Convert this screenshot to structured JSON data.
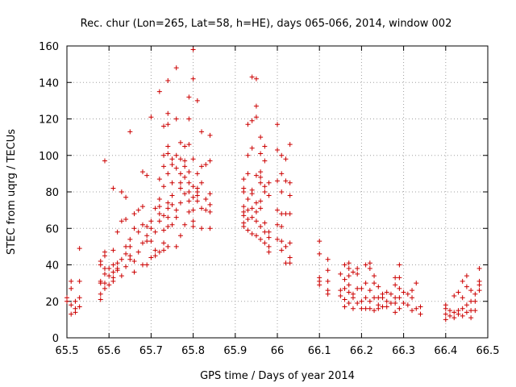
{
  "chart_data": {
    "type": "scatter",
    "title": "Rec. chur (Lon=265, Lat=58, h=HE), days 065-066, 2014, window 002",
    "xlabel": "GPS time / Days of year 2014",
    "ylabel": "STEC from uqrg / TECUs",
    "xlim": [
      65.5,
      66.5
    ],
    "ylim": [
      0,
      160
    ],
    "xticks": [
      65.5,
      65.6,
      65.7,
      65.8,
      65.9,
      66.0,
      66.1,
      66.2,
      66.3,
      66.4,
      66.5
    ],
    "xtick_labels": [
      "65.5",
      "65.6",
      "65.7",
      "65.8",
      "65.9",
      "66",
      "66.1",
      "66.2",
      "66.3",
      "66.4",
      "66.5"
    ],
    "yticks": [
      0,
      20,
      40,
      60,
      80,
      100,
      120,
      140,
      160
    ],
    "ytick_labels": [
      "0",
      "20",
      "40",
      "60",
      "80",
      "100",
      "120",
      "140",
      "160"
    ],
    "grid": true,
    "marker": "plus",
    "color": "#cc0000",
    "points": [
      [
        65.5,
        22
      ],
      [
        65.5,
        20
      ],
      [
        65.51,
        18
      ],
      [
        65.51,
        13
      ],
      [
        65.51,
        27
      ],
      [
        65.51,
        31
      ],
      [
        65.52,
        16
      ],
      [
        65.52,
        14
      ],
      [
        65.52,
        20
      ],
      [
        65.53,
        31
      ],
      [
        65.53,
        22
      ],
      [
        65.53,
        17
      ],
      [
        65.53,
        49
      ],
      [
        65.58,
        42
      ],
      [
        65.58,
        40
      ],
      [
        65.58,
        31
      ],
      [
        65.58,
        30
      ],
      [
        65.58,
        24
      ],
      [
        65.58,
        21
      ],
      [
        65.59,
        97
      ],
      [
        65.59,
        47
      ],
      [
        65.59,
        45
      ],
      [
        65.59,
        38
      ],
      [
        65.59,
        35
      ],
      [
        65.59,
        30
      ],
      [
        65.59,
        27
      ],
      [
        65.6,
        38
      ],
      [
        65.6,
        34
      ],
      [
        65.6,
        29
      ],
      [
        65.61,
        82
      ],
      [
        65.61,
        48
      ],
      [
        65.61,
        40
      ],
      [
        65.61,
        36
      ],
      [
        65.61,
        33
      ],
      [
        65.61,
        31
      ],
      [
        65.62,
        58
      ],
      [
        65.62,
        41
      ],
      [
        65.62,
        38
      ],
      [
        65.62,
        37
      ],
      [
        65.63,
        80
      ],
      [
        65.63,
        64
      ],
      [
        65.63,
        43
      ],
      [
        65.63,
        34
      ],
      [
        65.64,
        77
      ],
      [
        65.64,
        65
      ],
      [
        65.64,
        50
      ],
      [
        65.64,
        46
      ],
      [
        65.64,
        39
      ],
      [
        65.65,
        113
      ],
      [
        65.65,
        54
      ],
      [
        65.65,
        50
      ],
      [
        65.65,
        45
      ],
      [
        65.65,
        43
      ],
      [
        65.66,
        68
      ],
      [
        65.66,
        60
      ],
      [
        65.66,
        42
      ],
      [
        65.66,
        36
      ],
      [
        65.67,
        70
      ],
      [
        65.67,
        58
      ],
      [
        65.67,
        47
      ],
      [
        65.68,
        91
      ],
      [
        65.68,
        72
      ],
      [
        65.68,
        62
      ],
      [
        65.68,
        52
      ],
      [
        65.68,
        40
      ],
      [
        65.69,
        89
      ],
      [
        65.69,
        61
      ],
      [
        65.69,
        56
      ],
      [
        65.69,
        53
      ],
      [
        65.69,
        40
      ],
      [
        65.7,
        121
      ],
      [
        65.7,
        64
      ],
      [
        65.7,
        60
      ],
      [
        65.7,
        53
      ],
      [
        65.7,
        44
      ],
      [
        65.71,
        71
      ],
      [
        65.71,
        58
      ],
      [
        65.71,
        48
      ],
      [
        65.71,
        45
      ],
      [
        65.72,
        135
      ],
      [
        65.72,
        87
      ],
      [
        65.72,
        76
      ],
      [
        65.72,
        72
      ],
      [
        65.72,
        68
      ],
      [
        65.72,
        64
      ],
      [
        65.72,
        47
      ],
      [
        65.73,
        116
      ],
      [
        65.73,
        100
      ],
      [
        65.73,
        94
      ],
      [
        65.73,
        83
      ],
      [
        65.73,
        67
      ],
      [
        65.73,
        59
      ],
      [
        65.73,
        52
      ],
      [
        65.73,
        48
      ],
      [
        65.74,
        141
      ],
      [
        65.74,
        123
      ],
      [
        65.74,
        117
      ],
      [
        65.74,
        105
      ],
      [
        65.74,
        101
      ],
      [
        65.74,
        90
      ],
      [
        65.74,
        74
      ],
      [
        65.74,
        71
      ],
      [
        65.74,
        66
      ],
      [
        65.74,
        61
      ],
      [
        65.74,
        50
      ],
      [
        65.75,
        98
      ],
      [
        65.75,
        95
      ],
      [
        65.75,
        85
      ],
      [
        65.75,
        78
      ],
      [
        65.75,
        73
      ],
      [
        65.75,
        62
      ],
      [
        65.76,
        148
      ],
      [
        65.76,
        120
      ],
      [
        65.76,
        100
      ],
      [
        65.76,
        93
      ],
      [
        65.76,
        70
      ],
      [
        65.76,
        66
      ],
      [
        65.76,
        50
      ],
      [
        65.77,
        107
      ],
      [
        65.77,
        98
      ],
      [
        65.77,
        90
      ],
      [
        65.77,
        85
      ],
      [
        65.77,
        82
      ],
      [
        65.77,
        74
      ],
      [
        65.77,
        56
      ],
      [
        65.78,
        105
      ],
      [
        65.78,
        97
      ],
      [
        65.78,
        94
      ],
      [
        65.78,
        88
      ],
      [
        65.78,
        79
      ],
      [
        65.78,
        62
      ],
      [
        65.79,
        132
      ],
      [
        65.79,
        120
      ],
      [
        65.79,
        106
      ],
      [
        65.79,
        91
      ],
      [
        65.79,
        85
      ],
      [
        65.79,
        80
      ],
      [
        65.79,
        75
      ],
      [
        65.79,
        69
      ],
      [
        65.8,
        158
      ],
      [
        65.8,
        142
      ],
      [
        65.8,
        98
      ],
      [
        65.8,
        83
      ],
      [
        65.8,
        77
      ],
      [
        65.8,
        70
      ],
      [
        65.8,
        64
      ],
      [
        65.8,
        61
      ],
      [
        65.81,
        130
      ],
      [
        65.81,
        90
      ],
      [
        65.81,
        82
      ],
      [
        65.81,
        80
      ],
      [
        65.81,
        78
      ],
      [
        65.81,
        75
      ],
      [
        65.82,
        113
      ],
      [
        65.82,
        94
      ],
      [
        65.82,
        85
      ],
      [
        65.82,
        71
      ],
      [
        65.82,
        60
      ],
      [
        65.83,
        95
      ],
      [
        65.83,
        76
      ],
      [
        65.83,
        70
      ],
      [
        65.84,
        111
      ],
      [
        65.84,
        97
      ],
      [
        65.84,
        79
      ],
      [
        65.84,
        73
      ],
      [
        65.84,
        69
      ],
      [
        65.84,
        60
      ],
      [
        65.92,
        87
      ],
      [
        65.92,
        82
      ],
      [
        65.92,
        80
      ],
      [
        65.92,
        72
      ],
      [
        65.92,
        69
      ],
      [
        65.92,
        67
      ],
      [
        65.92,
        63
      ],
      [
        65.92,
        61
      ],
      [
        65.93,
        117
      ],
      [
        65.93,
        100
      ],
      [
        65.93,
        90
      ],
      [
        65.93,
        76
      ],
      [
        65.93,
        70
      ],
      [
        65.93,
        65
      ],
      [
        65.93,
        59
      ],
      [
        65.94,
        143
      ],
      [
        65.94,
        119
      ],
      [
        65.94,
        104
      ],
      [
        65.94,
        81
      ],
      [
        65.94,
        79
      ],
      [
        65.94,
        71
      ],
      [
        65.94,
        66
      ],
      [
        65.94,
        57
      ],
      [
        65.95,
        142
      ],
      [
        65.95,
        127
      ],
      [
        65.95,
        121
      ],
      [
        65.95,
        89
      ],
      [
        65.95,
        74
      ],
      [
        65.95,
        69
      ],
      [
        65.95,
        64
      ],
      [
        65.95,
        56
      ],
      [
        65.96,
        110
      ],
      [
        65.96,
        101
      ],
      [
        65.96,
        91
      ],
      [
        65.96,
        88
      ],
      [
        65.96,
        85
      ],
      [
        65.96,
        75
      ],
      [
        65.96,
        71
      ],
      [
        65.96,
        61
      ],
      [
        65.96,
        54
      ],
      [
        65.97,
        105
      ],
      [
        65.97,
        97
      ],
      [
        65.97,
        83
      ],
      [
        65.97,
        80
      ],
      [
        65.97,
        63
      ],
      [
        65.97,
        58
      ],
      [
        65.97,
        52
      ],
      [
        65.98,
        85
      ],
      [
        65.98,
        78
      ],
      [
        65.98,
        58
      ],
      [
        65.98,
        55
      ],
      [
        65.98,
        50
      ],
      [
        65.98,
        47
      ],
      [
        66.0,
        117
      ],
      [
        66.0,
        103
      ],
      [
        66.0,
        86
      ],
      [
        66.0,
        70
      ],
      [
        66.0,
        62
      ],
      [
        66.0,
        54
      ],
      [
        66.01,
        100
      ],
      [
        66.01,
        90
      ],
      [
        66.01,
        80
      ],
      [
        66.01,
        68
      ],
      [
        66.01,
        61
      ],
      [
        66.01,
        53
      ],
      [
        66.01,
        48
      ],
      [
        66.02,
        98
      ],
      [
        66.02,
        86
      ],
      [
        66.02,
        68
      ],
      [
        66.02,
        50
      ],
      [
        66.02,
        41
      ],
      [
        66.03,
        106
      ],
      [
        66.03,
        85
      ],
      [
        66.03,
        78
      ],
      [
        66.03,
        68
      ],
      [
        66.03,
        52
      ],
      [
        66.03,
        44
      ],
      [
        66.03,
        41
      ],
      [
        66.1,
        53
      ],
      [
        66.1,
        46
      ],
      [
        66.1,
        33
      ],
      [
        66.1,
        31
      ],
      [
        66.1,
        29
      ],
      [
        66.12,
        43
      ],
      [
        66.12,
        37
      ],
      [
        66.12,
        31
      ],
      [
        66.12,
        26
      ],
      [
        66.12,
        24
      ],
      [
        66.15,
        35
      ],
      [
        66.15,
        26
      ],
      [
        66.15,
        23
      ],
      [
        66.16,
        40
      ],
      [
        66.16,
        32
      ],
      [
        66.16,
        27
      ],
      [
        66.16,
        21
      ],
      [
        66.16,
        17
      ],
      [
        66.17,
        41
      ],
      [
        66.17,
        38
      ],
      [
        66.17,
        34
      ],
      [
        66.17,
        29
      ],
      [
        66.17,
        25
      ],
      [
        66.17,
        19
      ],
      [
        66.18,
        36
      ],
      [
        66.18,
        24
      ],
      [
        66.18,
        22
      ],
      [
        66.18,
        16
      ],
      [
        66.19,
        38
      ],
      [
        66.19,
        35
      ],
      [
        66.19,
        27
      ],
      [
        66.19,
        19
      ],
      [
        66.2,
        27
      ],
      [
        66.2,
        20
      ],
      [
        66.2,
        16
      ],
      [
        66.21,
        40
      ],
      [
        66.21,
        30
      ],
      [
        66.21,
        22
      ],
      [
        66.21,
        16
      ],
      [
        66.22,
        41
      ],
      [
        66.22,
        38
      ],
      [
        66.22,
        26
      ],
      [
        66.22,
        20
      ],
      [
        66.22,
        16
      ],
      [
        66.23,
        34
      ],
      [
        66.23,
        30
      ],
      [
        66.23,
        22
      ],
      [
        66.23,
        15
      ],
      [
        66.24,
        28
      ],
      [
        66.24,
        22
      ],
      [
        66.24,
        18
      ],
      [
        66.24,
        16
      ],
      [
        66.25,
        24
      ],
      [
        66.25,
        22
      ],
      [
        66.25,
        17
      ],
      [
        66.26,
        25
      ],
      [
        66.26,
        20
      ],
      [
        66.26,
        17
      ],
      [
        66.27,
        24
      ],
      [
        66.27,
        19
      ],
      [
        66.28,
        33
      ],
      [
        66.28,
        29
      ],
      [
        66.28,
        22
      ],
      [
        66.28,
        19
      ],
      [
        66.28,
        14
      ],
      [
        66.29,
        40
      ],
      [
        66.29,
        33
      ],
      [
        66.29,
        27
      ],
      [
        66.29,
        22
      ],
      [
        66.29,
        16
      ],
      [
        66.3,
        25
      ],
      [
        66.3,
        19
      ],
      [
        66.31,
        24
      ],
      [
        66.31,
        18
      ],
      [
        66.32,
        26
      ],
      [
        66.32,
        22
      ],
      [
        66.32,
        15
      ],
      [
        66.33,
        30
      ],
      [
        66.33,
        16
      ],
      [
        66.34,
        17
      ],
      [
        66.34,
        13
      ],
      [
        66.4,
        18
      ],
      [
        66.4,
        16
      ],
      [
        66.4,
        13
      ],
      [
        66.4,
        10
      ],
      [
        66.41,
        15
      ],
      [
        66.41,
        12
      ],
      [
        66.42,
        23
      ],
      [
        66.42,
        14
      ],
      [
        66.42,
        11
      ],
      [
        66.43,
        25
      ],
      [
        66.43,
        15
      ],
      [
        66.43,
        13
      ],
      [
        66.44,
        31
      ],
      [
        66.44,
        22
      ],
      [
        66.44,
        16
      ],
      [
        66.44,
        12
      ],
      [
        66.45,
        34
      ],
      [
        66.45,
        28
      ],
      [
        66.45,
        18
      ],
      [
        66.45,
        14
      ],
      [
        66.46,
        26
      ],
      [
        66.46,
        20
      ],
      [
        66.46,
        15
      ],
      [
        66.46,
        11
      ],
      [
        66.47,
        24
      ],
      [
        66.47,
        20
      ],
      [
        66.47,
        15
      ],
      [
        66.48,
        38
      ],
      [
        66.48,
        31
      ],
      [
        66.48,
        29
      ],
      [
        66.48,
        26
      ]
    ]
  }
}
